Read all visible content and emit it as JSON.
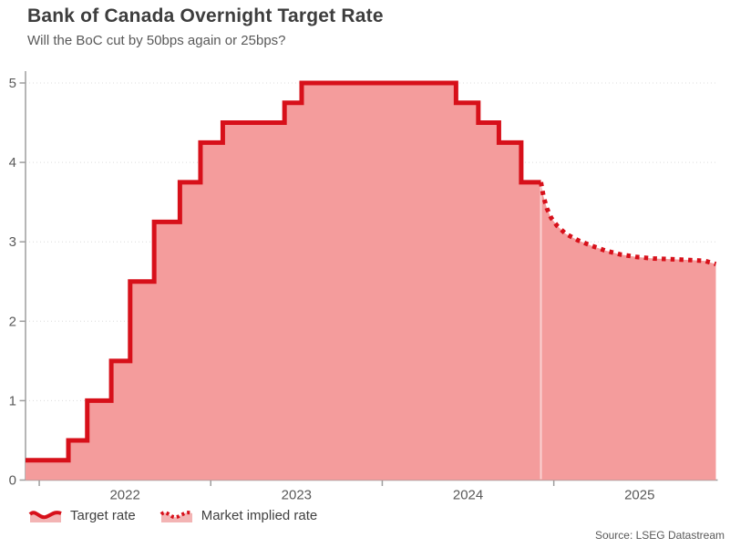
{
  "header": {
    "title": "Bank of Canada Overnight Target Rate",
    "subtitle": "Will the BoC cut by 50bps again or 25bps?"
  },
  "source": "Source: LSEG Datastream",
  "legend": [
    {
      "label": "Target rate",
      "icon": "area-wave-solid-icon"
    },
    {
      "label": "Market implied rate",
      "icon": "area-wave-dotted-icon"
    }
  ],
  "colors": {
    "red": "#d7101a",
    "pink": "#f49c9c",
    "legend_pink": "#f3b4b4",
    "grid": "#dcdcdc",
    "axis": "#9e9e9e",
    "title_text": "#3d3d3d",
    "muted_text": "#595959",
    "legend_text": "#404040",
    "separator": "rgba(255,255,255,0.55)"
  },
  "chart_data": {
    "type": "area",
    "title": "Bank of Canada Overnight Target Rate",
    "subtitle": "Will the BoC cut by 50bps again or 25bps?",
    "xlabel": "",
    "ylabel": "",
    "x_domain": [
      2021.92,
      2025.945
    ],
    "y_domain": [
      0,
      5
    ],
    "x_ticks": [
      2022,
      2023,
      2024,
      2025
    ],
    "y_ticks": [
      0,
      1,
      2,
      3,
      4,
      5
    ],
    "grid": "horizontal-dotted",
    "legend_position": "bottom-left",
    "series": [
      {
        "name": "Target rate",
        "style": "step-solid",
        "points": [
          [
            2021.92,
            0.25
          ],
          [
            2022.17,
            0.5
          ],
          [
            2022.28,
            1.0
          ],
          [
            2022.42,
            1.5
          ],
          [
            2022.53,
            2.5
          ],
          [
            2022.67,
            3.25
          ],
          [
            2022.82,
            3.75
          ],
          [
            2022.94,
            4.25
          ],
          [
            2023.07,
            4.5
          ],
          [
            2023.43,
            4.75
          ],
          [
            2023.53,
            5.0
          ],
          [
            2024.43,
            4.75
          ],
          [
            2024.56,
            4.5
          ],
          [
            2024.68,
            4.25
          ],
          [
            2024.81,
            3.75
          ]
        ],
        "end_year": 2024.925
      },
      {
        "name": "Market implied rate",
        "style": "dotted",
        "points": [
          [
            2024.925,
            3.75
          ],
          [
            2024.94,
            3.57
          ],
          [
            2024.96,
            3.42
          ],
          [
            2024.985,
            3.3
          ],
          [
            2025.02,
            3.2
          ],
          [
            2025.07,
            3.1
          ],
          [
            2025.14,
            3.02
          ],
          [
            2025.22,
            2.95
          ],
          [
            2025.3,
            2.89
          ],
          [
            2025.39,
            2.84
          ],
          [
            2025.48,
            2.81
          ],
          [
            2025.58,
            2.79
          ],
          [
            2025.7,
            2.78
          ],
          [
            2025.8,
            2.77
          ],
          [
            2025.88,
            2.76
          ],
          [
            2025.945,
            2.72
          ]
        ]
      }
    ]
  }
}
